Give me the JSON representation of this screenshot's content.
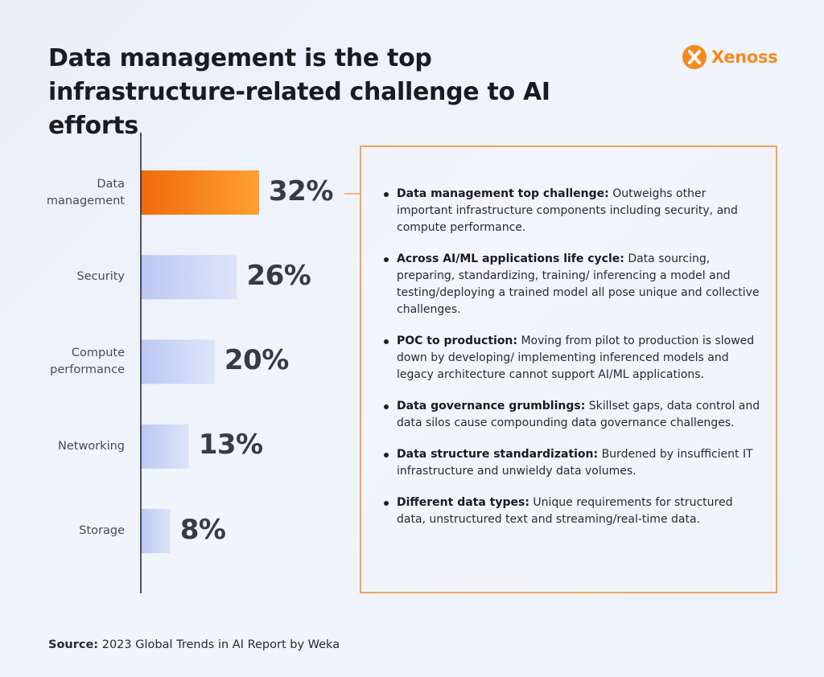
{
  "header": {
    "title": "Data management is the top infrastructure-related challenge to AI efforts"
  },
  "logo": {
    "name": "Xenoss",
    "color": "#f58a1f"
  },
  "chart_data": {
    "type": "bar",
    "orientation": "horizontal",
    "title": "Data management is the top infrastructure-related challenge to AI efforts",
    "categories": [
      "Data\nmanagement",
      "Security",
      "Compute\nperformance",
      "Networking",
      "Storage"
    ],
    "values": [
      32,
      26,
      20,
      13,
      8
    ],
    "value_labels": [
      "32%",
      "26%",
      "20%",
      "13%",
      "8%"
    ],
    "unit": "%",
    "xlim": [
      0,
      40
    ],
    "highlight_index": 0,
    "colors": {
      "highlight_start": "#f06a0c",
      "highlight_end": "#ffa031",
      "bar_start": "#bcc8f4",
      "bar_end": "#dde4f9",
      "axis": "#1f1f24",
      "connector": "#f4a259"
    },
    "grid": false,
    "legend": "none"
  },
  "panel": {
    "items": [
      {
        "heading": "Data management top challenge:",
        "text": " Outweighs other important infrastructure components including security, and compute performance."
      },
      {
        "heading": "Across AI/ML applications life cycle:",
        "text": " Data sourcing, preparing, standardizing, training/ inferencing a model and testing/deploying a trained model all pose unique and collective challenges."
      },
      {
        "heading": "POC to production:",
        "text": " Moving from pilot to production is slowed down by developing/ implementing inferenced models and legacy architecture cannot support AI/ML applications."
      },
      {
        "heading": "Data governance grumblings:",
        "text": " Skillset gaps, data control and data silos cause compounding data governance challenges."
      },
      {
        "heading": "Data structure standardization:",
        "text": " Burdened by insufficient IT infrastructure and unwieldy data volumes."
      },
      {
        "heading": "Different data types:",
        "text": " Unique requirements for structured data, unstructured text and streaming/real-time data."
      }
    ]
  },
  "footer": {
    "source_label": "Source:",
    "source_text": " 2023 Global Trends in AI Report by Weka"
  }
}
